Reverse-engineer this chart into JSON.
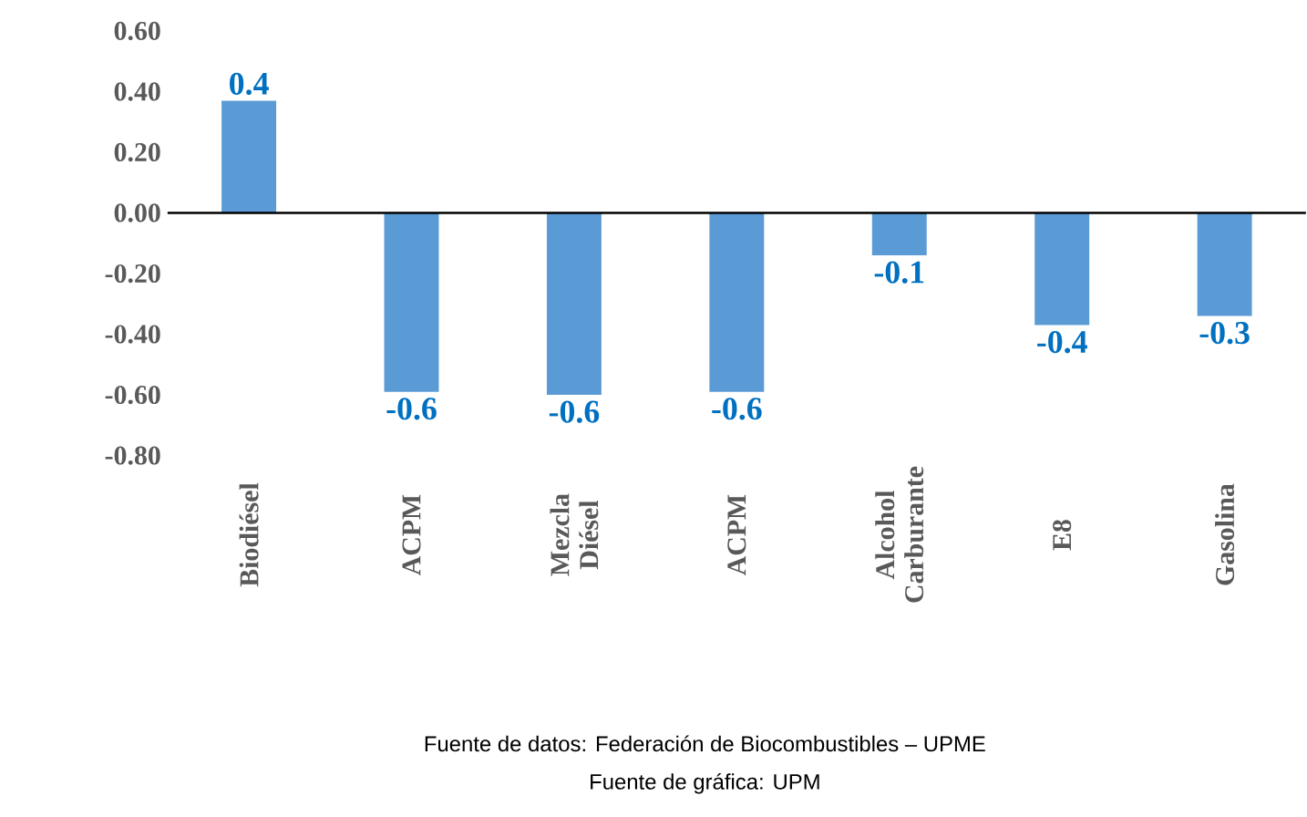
{
  "chart_data": {
    "type": "bar",
    "categories": [
      "Biodiésel",
      "ACPM",
      "Mezcla Diésel",
      "ACPM",
      "Alcohol Carburante",
      "E8",
      "Gasolina"
    ],
    "values": [
      0.37,
      -0.59,
      -0.6,
      -0.59,
      -0.14,
      -0.37,
      -0.34
    ],
    "value_labels": [
      "0.4",
      "-0.6",
      "-0.6",
      "-0.6",
      "-0.1",
      "-0.4",
      "-0.3"
    ],
    "color": "#5b9bd5",
    "ylim": [
      -0.8,
      0.6
    ],
    "yticks": [
      {
        "value": -0.8,
        "label": "-0.80"
      },
      {
        "value": -0.6,
        "label": "-0.60"
      },
      {
        "value": -0.4,
        "label": "-0.40"
      },
      {
        "value": -0.2,
        "label": "-0.20"
      },
      {
        "value": 0,
        "label": "0.00"
      },
      {
        "value": 0.2,
        "label": "0.20"
      },
      {
        "value": 0.4,
        "label": "0.40"
      },
      {
        "value": 0.6,
        "label": "0.60"
      }
    ],
    "annotations": [
      "Fuente de datos: Federación de Biocombustibles  – UPME",
      "Fuente de gráfica: UPM"
    ]
  }
}
